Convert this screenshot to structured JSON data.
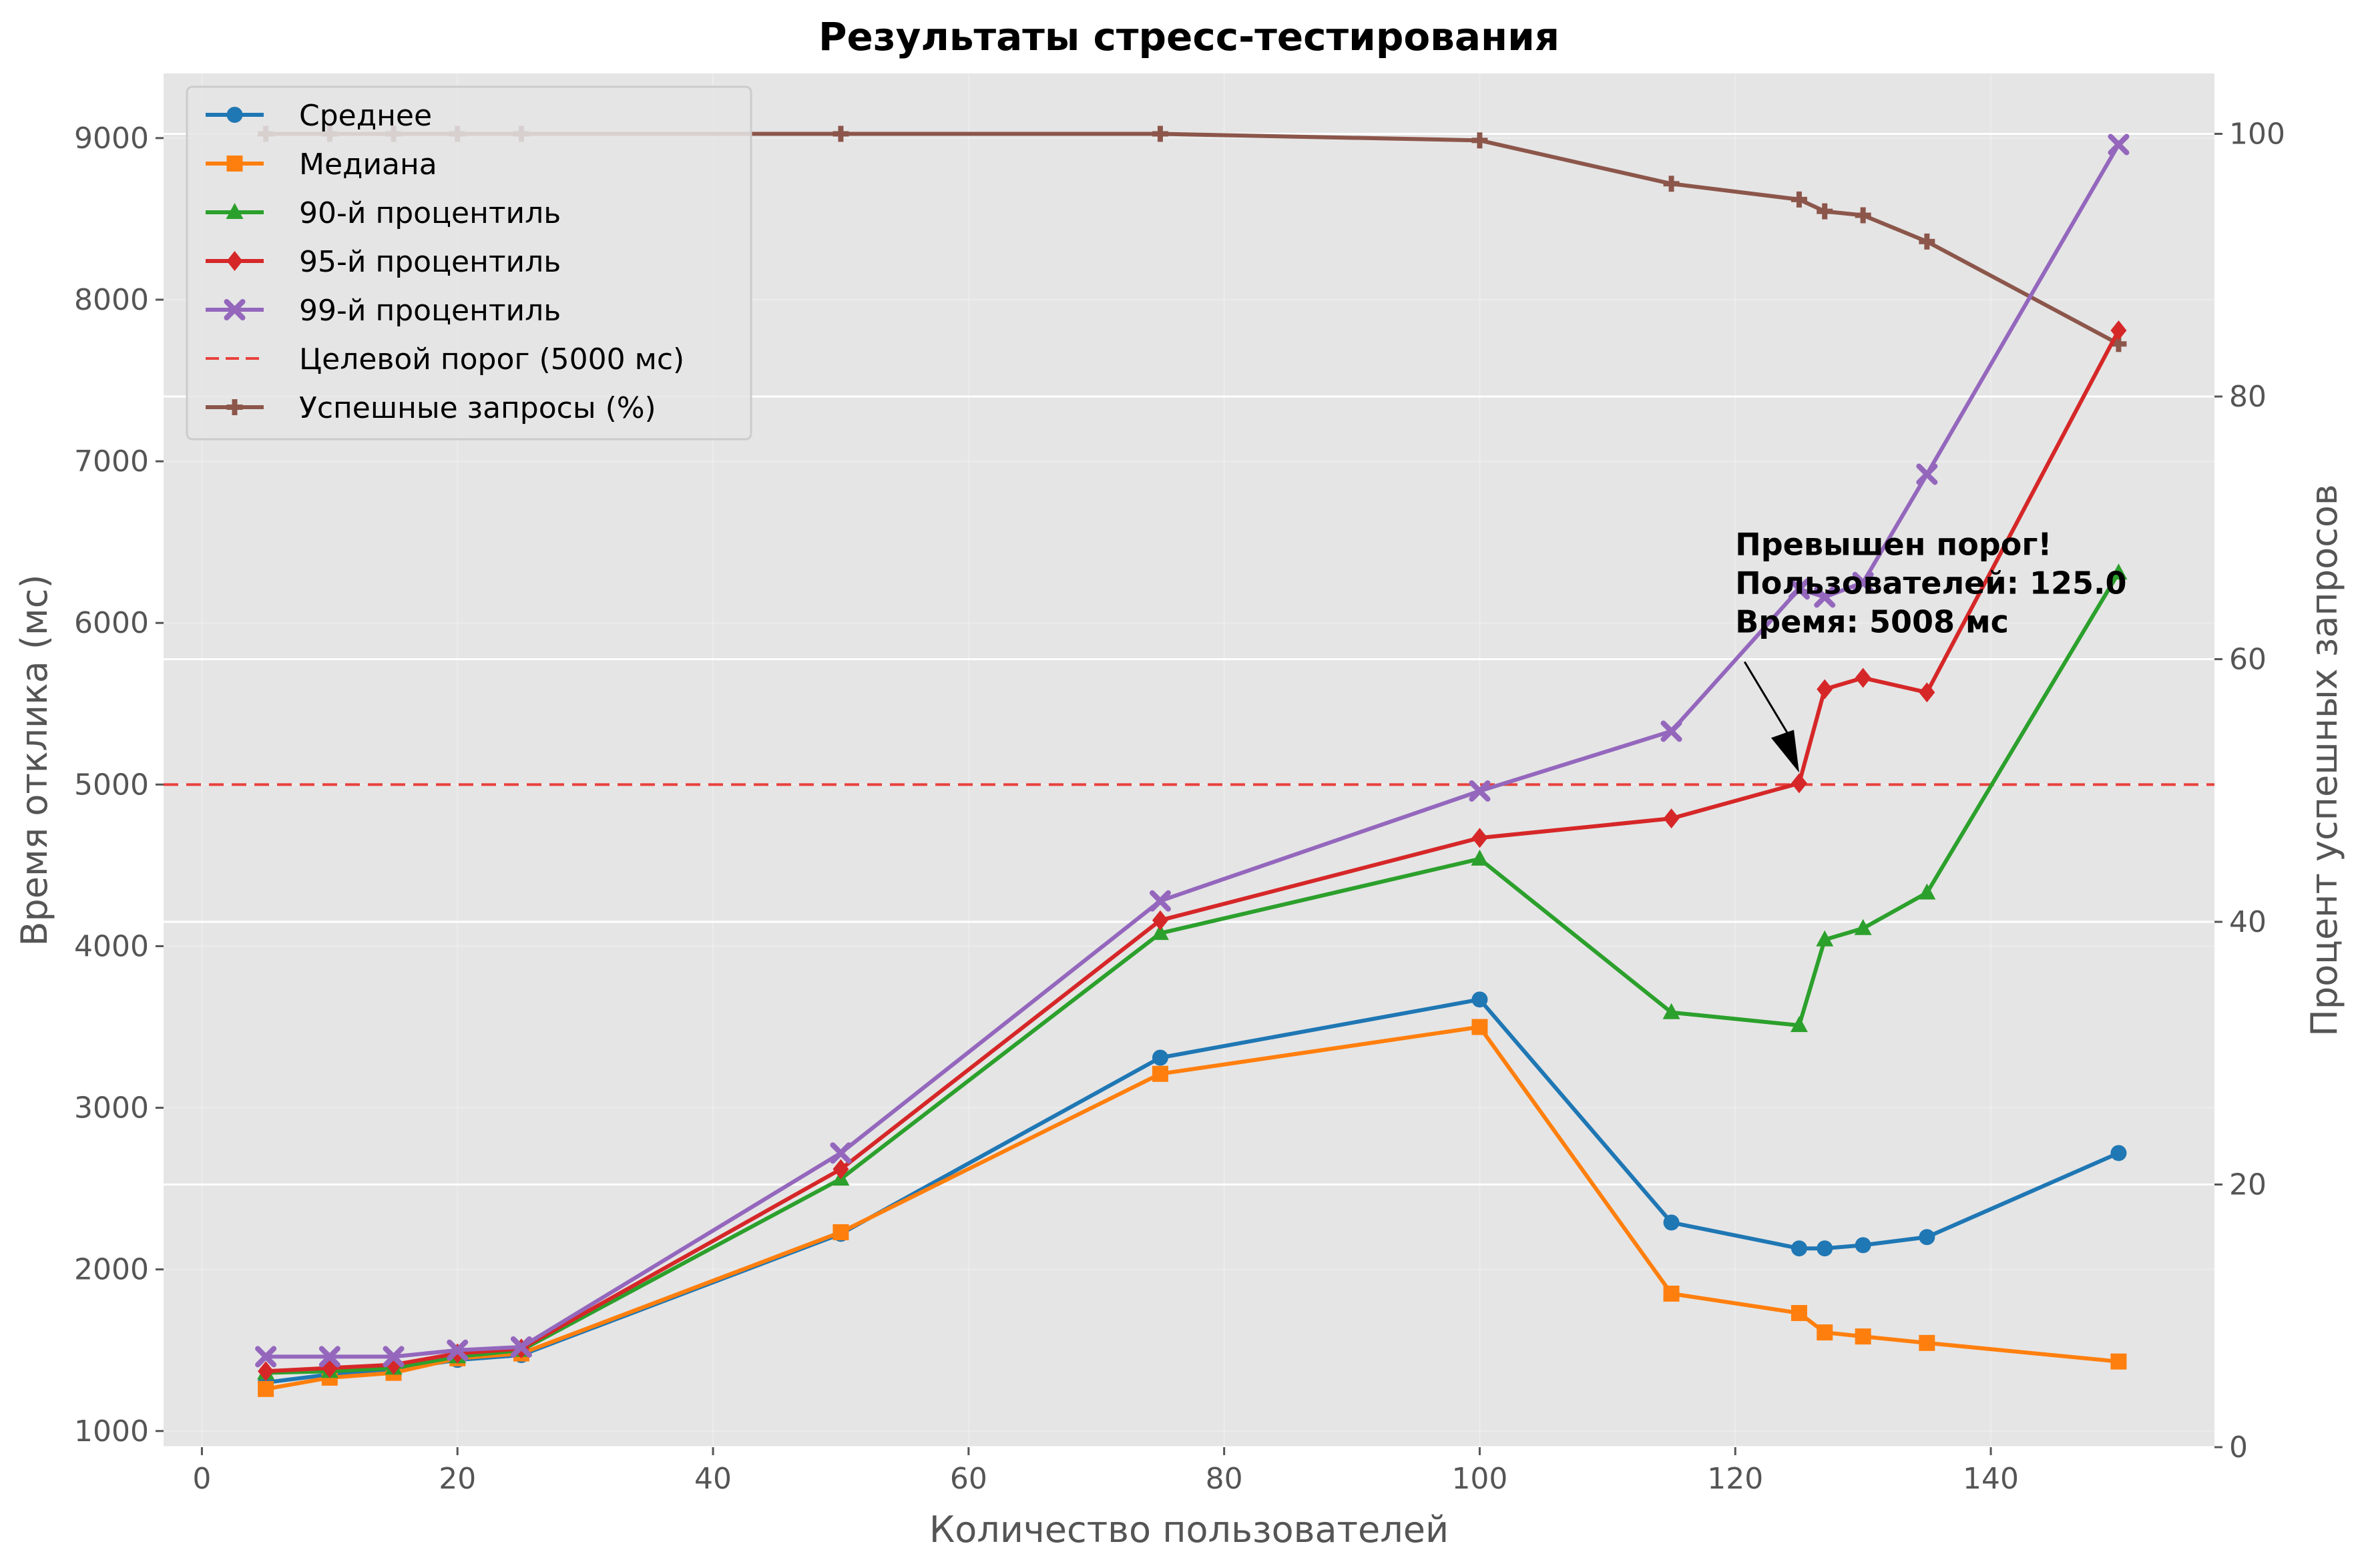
{
  "chart_data": {
    "type": "line",
    "title": "Результаты стресс-тестирования",
    "xlabel": "Количество пользователей",
    "ylabel": "Время отклика (мс)",
    "ylabel_right": "Процент успешных запросов",
    "xlim": [
      -3,
      157.5
    ],
    "ylim": [
      900,
      9400
    ],
    "ylim_right": [
      0,
      104.6
    ],
    "x_ticks": [
      0,
      20,
      40,
      60,
      80,
      100,
      120,
      140
    ],
    "y_ticks": [
      1000,
      2000,
      3000,
      4000,
      5000,
      6000,
      7000,
      8000,
      9000
    ],
    "y_ticks_right": [
      0,
      20,
      40,
      60,
      80,
      100
    ],
    "grid": true,
    "legend_position": "top-left",
    "x": [
      5,
      10,
      15,
      20,
      25,
      50,
      75,
      100,
      115,
      125,
      127,
      130,
      135,
      150
    ],
    "series": [
      {
        "name": "Среднее",
        "color": "#1f77b4",
        "marker": "circle",
        "axis": "left",
        "values": [
          1300,
          1350,
          1380,
          1440,
          1470,
          2220,
          3310,
          3670,
          2290,
          2130,
          2130,
          2150,
          2200,
          2720
        ]
      },
      {
        "name": "Медиана",
        "color": "#ff7f0e",
        "marker": "square",
        "axis": "left",
        "values": [
          1260,
          1330,
          1360,
          1450,
          1480,
          2230,
          3210,
          3500,
          1850,
          1730,
          1610,
          1585,
          1545,
          1430
        ]
      },
      {
        "name": "90-й процентиль",
        "color": "#2ca02c",
        "marker": "triangle",
        "axis": "left",
        "values": [
          1360,
          1370,
          1390,
          1460,
          1500,
          2560,
          4080,
          4540,
          3590,
          3510,
          4040,
          4110,
          4330,
          6310
        ]
      },
      {
        "name": "95-й процентиль",
        "color": "#d62728",
        "marker": "diamond",
        "axis": "left",
        "values": [
          1370,
          1390,
          1410,
          1480,
          1510,
          2620,
          4160,
          4670,
          4790,
          5008,
          5590,
          5660,
          5570,
          7810
        ]
      },
      {
        "name": "99-й процентиль",
        "color": "#9467bd",
        "marker": "x",
        "axis": "left",
        "values": [
          1460,
          1460,
          1460,
          1500,
          1520,
          2720,
          4280,
          4960,
          5330,
          6210,
          6160,
          6250,
          6920,
          8960
        ]
      },
      {
        "name": "Успешные запросы (%)",
        "color": "#8c564b",
        "marker": "plus",
        "axis": "right",
        "values": [
          100,
          100,
          100,
          100,
          100,
          100,
          100,
          99.5,
          96.2,
          95,
          94.1,
          93.8,
          91.8,
          84
        ]
      }
    ],
    "threshold": {
      "name": "Целевой порог (5000 мс)",
      "value": 5000,
      "color": "#e8413c"
    },
    "annotation": {
      "lines": [
        "Превышен порог!",
        "Пользователей: 125.0",
        "Время: 5008 мс"
      ],
      "point_x": 125,
      "point_y": 5008,
      "text_x": 120,
      "text_y": 6420
    }
  }
}
